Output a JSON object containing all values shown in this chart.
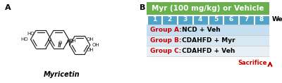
{
  "panel_b_title": "Myr (100 mg/kg) or Vehicle",
  "panel_b_title_bg": "#6ab04c",
  "weeks": [
    "1",
    "2",
    "3",
    "4",
    "5",
    "6",
    "7",
    "8"
  ],
  "week_box_bg": "#4fa3c8",
  "week_box_border": "white",
  "weeks_label": "Weeks",
  "groups": [
    {
      "label": "Group A:",
      "text": "NCD + Veh",
      "bg": "#c5dff0"
    },
    {
      "label": "Group B:",
      "text": "CDAHFD + Myr",
      "bg": "#d8e8f2"
    },
    {
      "label": "Group C:",
      "text": "CDAHFD + Veh",
      "bg": "#e8f0f6"
    }
  ],
  "group_label_color": "#cc0000",
  "group_text_color": "#000000",
  "sacrifice_label": "Sacrifice",
  "sacrifice_color": "#cc0000",
  "label_A": "A",
  "label_B": "B",
  "myricetin_label": "Myricetin",
  "figsize": [
    4.0,
    1.18
  ],
  "dpi": 100,
  "mol_color": "#222222",
  "mol_lw": 0.85
}
